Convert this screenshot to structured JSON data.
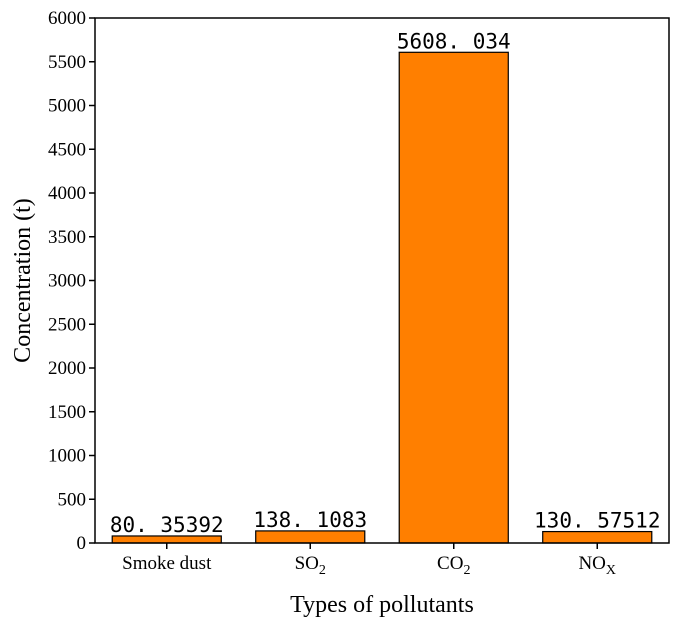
{
  "chart_data": {
    "type": "bar",
    "categories": [
      "Smoke dust",
      "SO2",
      "CO2",
      "NOX"
    ],
    "category_labels": [
      {
        "main": "Smoke dust",
        "sub": ""
      },
      {
        "main": "SO",
        "sub": "2"
      },
      {
        "main": "CO",
        "sub": "2"
      },
      {
        "main": "NO",
        "sub": "X"
      }
    ],
    "values": [
      80.35392,
      138.1083,
      5608.034,
      130.57512
    ],
    "value_labels": [
      "80. 35392",
      "138. 1083",
      "5608. 034",
      "130. 57512"
    ],
    "xlabel": "Types of pollutants",
    "ylabel": "Concentration (t)",
    "ylim": [
      0,
      6000
    ],
    "yticks": [
      0,
      500,
      1000,
      1500,
      2000,
      2500,
      3000,
      3500,
      4000,
      4500,
      5000,
      5500,
      6000
    ],
    "grid": false,
    "bar_color": "#ff7f00",
    "bar_edge_color": "#000000"
  }
}
